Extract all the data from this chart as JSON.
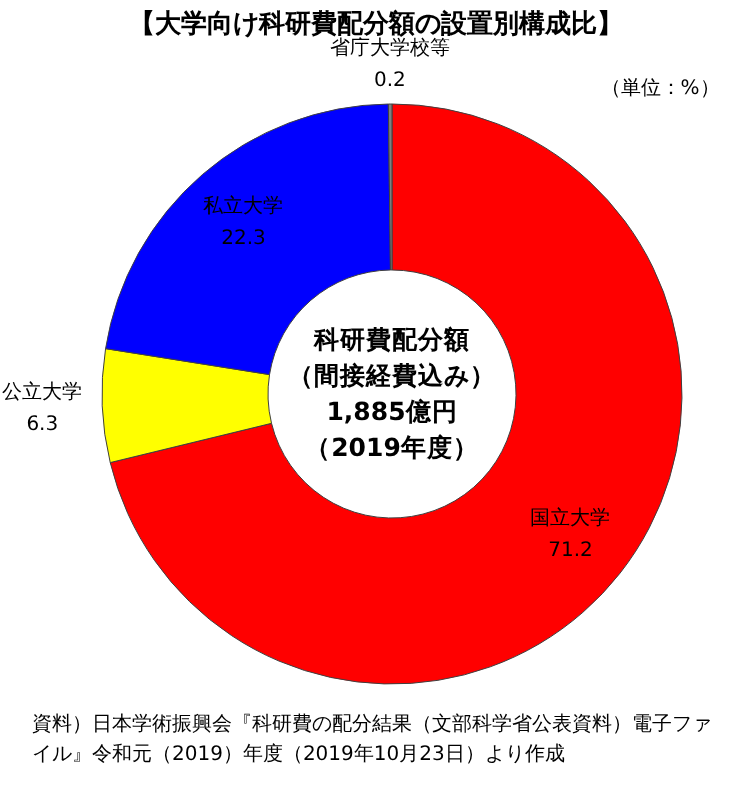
{
  "chart_data": {
    "type": "donut",
    "title": "【大学向け科研費配分額の設置別構成比】",
    "categories": [
      "国立大学",
      "公立大学",
      "私立大学",
      "省庁大学校等"
    ],
    "values": [
      71.2,
      6.3,
      22.3,
      0.2
    ],
    "colors": [
      "#ff0000",
      "#ffff00",
      "#0000ff",
      "#808080"
    ],
    "data_labels": true,
    "annotations": [
      "（単位：%）",
      "科研費配分額",
      "（間接経費込み）",
      "1,885億円",
      "（2019年度）",
      "資料）日本学術振興会『科研費の配分結果（文部科学省公表資料）電子ファイル』令和元（2019）年度（2019年10月23日）より作成"
    ]
  }
}
